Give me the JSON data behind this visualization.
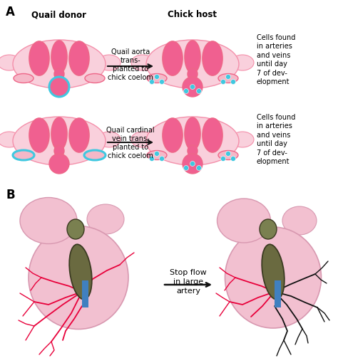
{
  "bg_color": "#ffffff",
  "pink_light": "#f9d0dc",
  "pink_med": "#f48faa",
  "pink_dark": "#ee6688",
  "pink_fill": "#f06090",
  "pink_body": "#f5b8c8",
  "pink_body2": "#f8c8d8",
  "cyan": "#40c8e0",
  "dark_olive": "#6a6a40",
  "dark_olive2": "#7a8050",
  "blue_bar": "#4080c0",
  "arrow_color": "#111111",
  "red_vessel": "#e8003a",
  "black_vessel": "#111111",
  "label_A": "A",
  "label_B": "B",
  "title_quail": "Quail donor",
  "title_chick": "Chick host",
  "arrow1_text": "Quail aorta\ntrans-\nplanted to\nchick coelom",
  "arrow2_text": "Quail cardinal\nvein trans-\nplanted to\nchick coelom",
  "right1_text": "Cells found\nin arteries\nand veins\nuntil day\n7 of dev-\nelopment",
  "right2_text": "Cells found\nin arteries\nand veins\nuntil day\n7 of dev-\nelopment",
  "arrow3_text": "Stop flow\nin large\nartery",
  "pink_embryo_body": "#f2c0d0",
  "pink_embryo_edge": "#d898b0"
}
